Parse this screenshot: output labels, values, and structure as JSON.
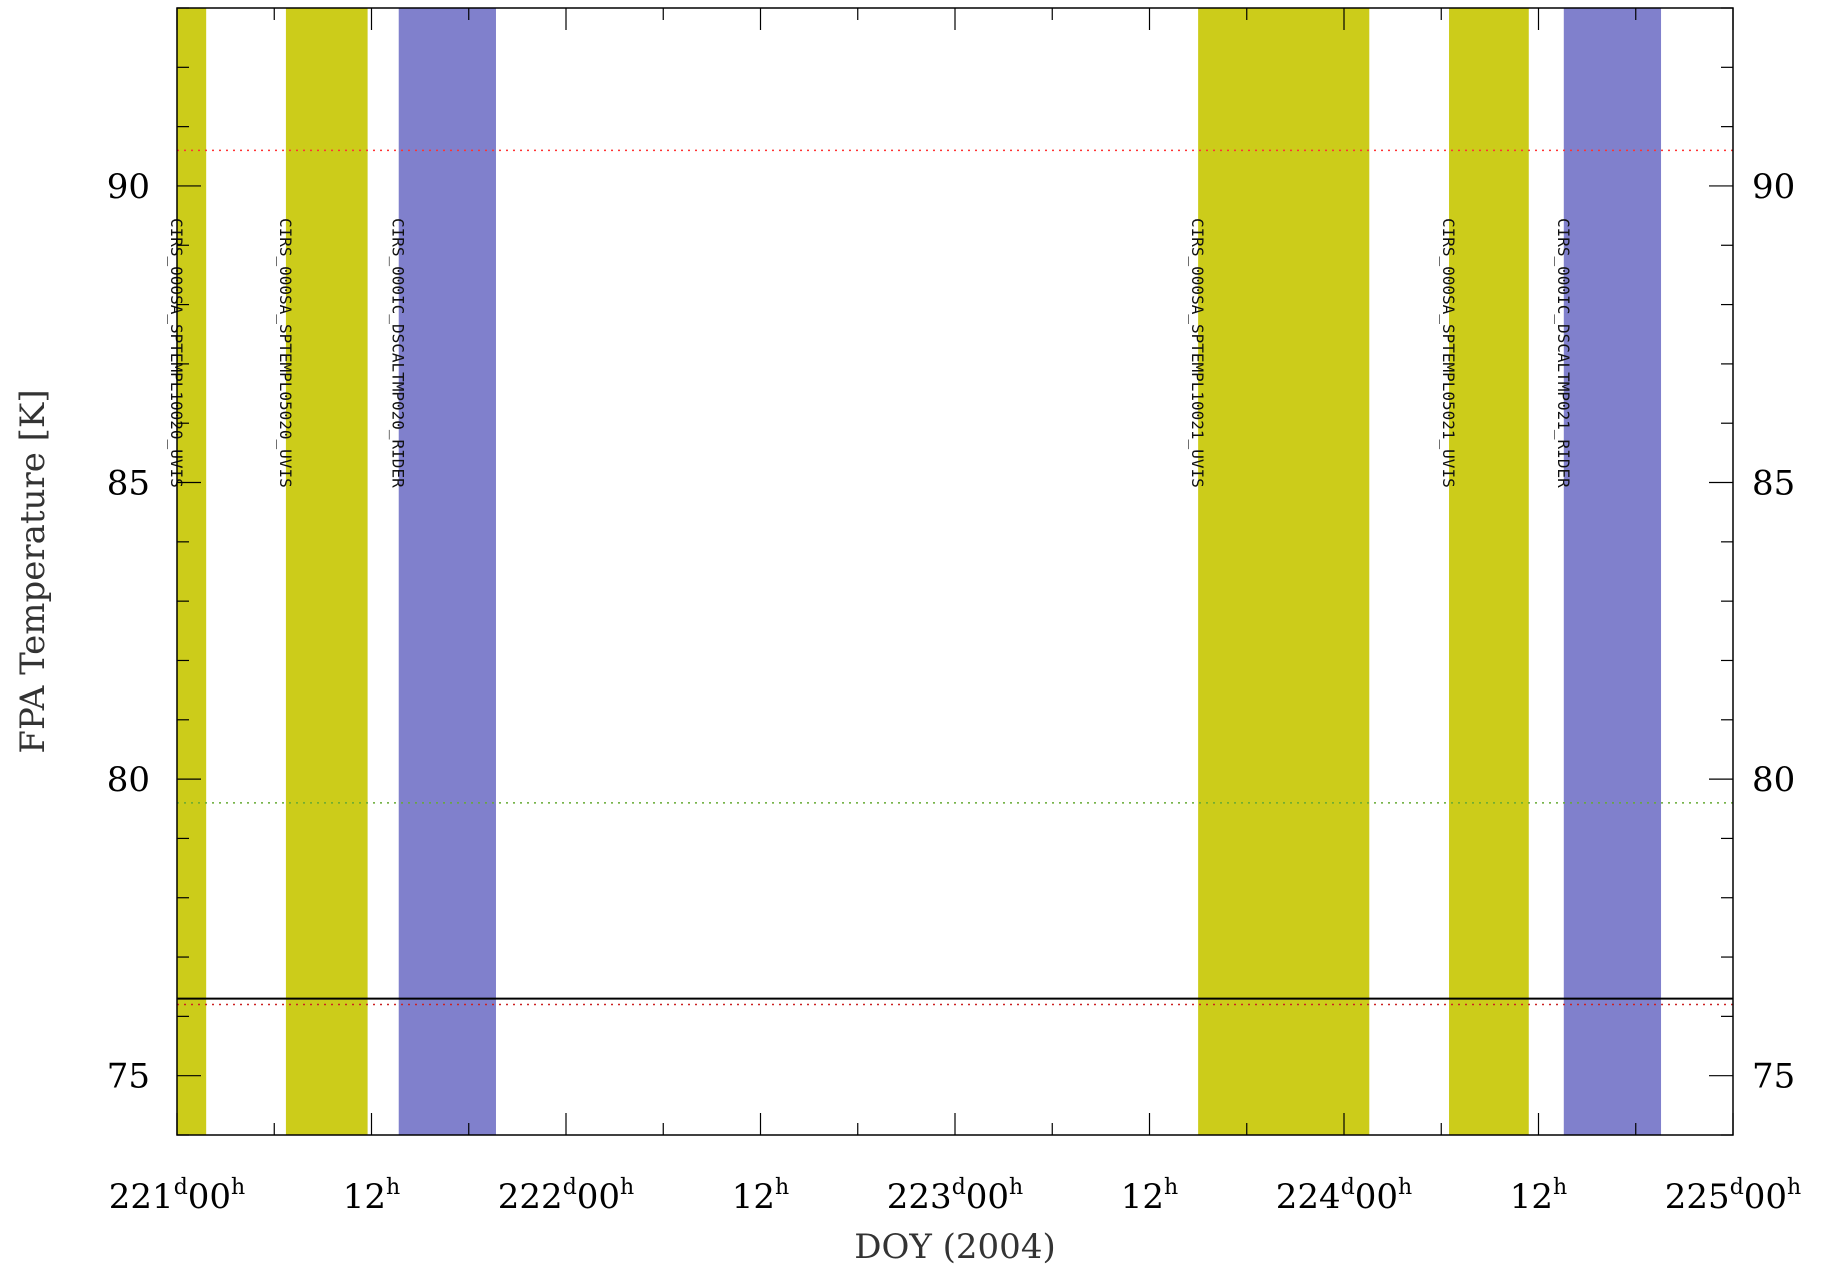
{
  "chart_data": {
    "type": "line",
    "title": "",
    "xlabel": "DOY (2004)",
    "ylabel": "FPA Temperature [K]",
    "xlim": [
      221.0,
      225.0
    ],
    "ylim": [
      74.0,
      93.0
    ],
    "x_ticks_major": [
      {
        "value": 221.0,
        "day": "221",
        "hour": "00"
      },
      {
        "value": 221.5,
        "day": "",
        "hour": "12"
      },
      {
        "value": 222.0,
        "day": "222",
        "hour": "00"
      },
      {
        "value": 222.5,
        "day": "",
        "hour": "12"
      },
      {
        "value": 223.0,
        "day": "223",
        "hour": "00"
      },
      {
        "value": 223.5,
        "day": "",
        "hour": "12"
      },
      {
        "value": 224.0,
        "day": "224",
        "hour": "00"
      },
      {
        "value": 224.5,
        "day": "",
        "hour": "12"
      },
      {
        "value": 225.0,
        "day": "225",
        "hour": "00"
      }
    ],
    "x_minor_step": 0.25,
    "y_ticks_major": [
      75,
      80,
      85,
      90
    ],
    "y_minor_step": 1,
    "day_superscript": "d",
    "hour_superscript": "h",
    "bands": [
      {
        "label": "CIRS_000SA_SPTEMPL10020_UVIS",
        "start": 221.0,
        "end": 221.075,
        "color": "#cccc1a"
      },
      {
        "label": "CIRS_000SA_SPTEMPL05020_UVIS",
        "start": 221.28,
        "end": 221.49,
        "color": "#cccc1a"
      },
      {
        "label": "CIRS_000IC_DSCALTMP020_RIDER",
        "start": 221.57,
        "end": 221.82,
        "color": "#8080cc"
      },
      {
        "label": "CIRS_000SA_SPTEMPL10021_UVIS",
        "start": 223.625,
        "end": 224.065,
        "color": "#cccc1a"
      },
      {
        "label": "CIRS_000SA_SPTEMPL05021_UVIS",
        "start": 224.27,
        "end": 224.475,
        "color": "#cccc1a"
      },
      {
        "label": "CIRS_000IC_DSCALTMP021_RIDER",
        "start": 224.565,
        "end": 224.815,
        "color": "#8080cc"
      }
    ],
    "series": [
      {
        "style": "solid",
        "color": "#000000",
        "x": [
          221.0,
          225.0
        ],
        "y": [
          76.3,
          76.3
        ]
      }
    ],
    "reference_lines": [
      {
        "y": 90.6,
        "color": "#ff3333",
        "style": "dotted"
      },
      {
        "y": 79.6,
        "color": "#66aa33",
        "style": "dotted"
      },
      {
        "y": 76.2,
        "color": "#cc2222",
        "style": "dotted"
      }
    ]
  }
}
